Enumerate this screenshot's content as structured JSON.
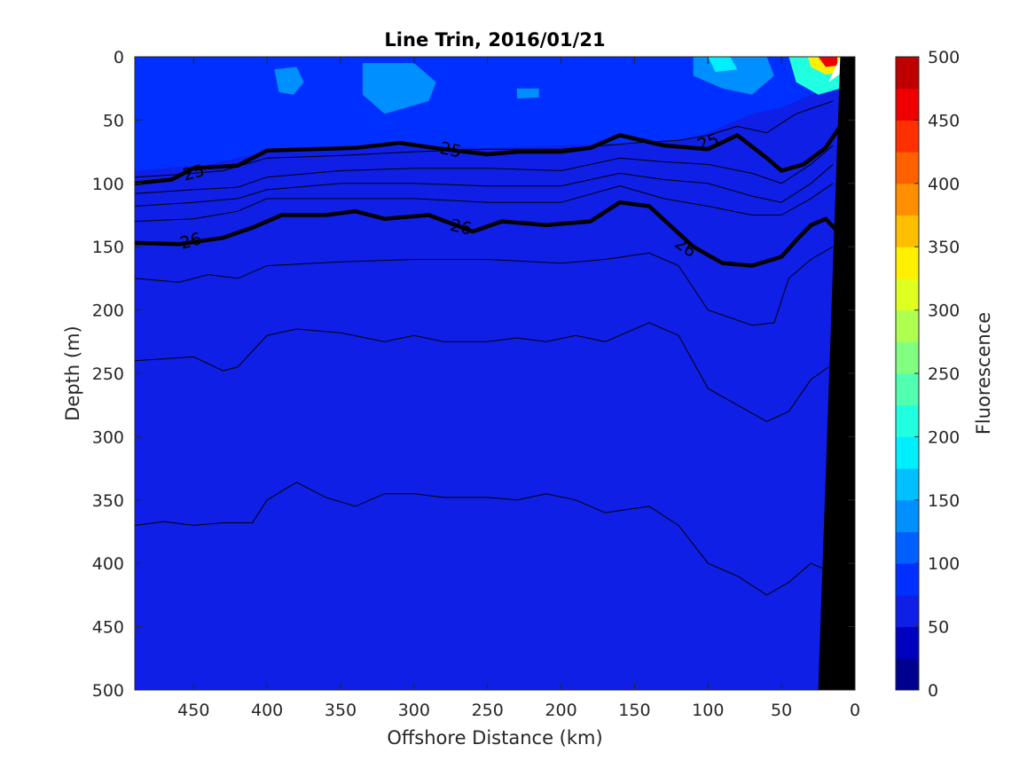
{
  "chart_data": {
    "type": "heatmap",
    "title": "Line Trin, 2016/01/21",
    "xlabel": "Offshore Distance (km)",
    "ylabel": "Depth (m)",
    "colorbar_label": "Fluorescence",
    "xlim": [
      490,
      0
    ],
    "ylim": [
      0,
      500
    ],
    "x_ticks": [
      450,
      400,
      350,
      300,
      250,
      200,
      150,
      100,
      50,
      0
    ],
    "y_ticks": [
      0,
      50,
      100,
      150,
      200,
      250,
      300,
      350,
      400,
      450,
      500
    ],
    "colorbar": {
      "range": [
        0,
        500
      ],
      "ticks": [
        0,
        50,
        100,
        150,
        200,
        250,
        300,
        350,
        400,
        450,
        500
      ],
      "levels": [
        {
          "from": 0,
          "to": 25,
          "color": "#00008f"
        },
        {
          "from": 25,
          "to": 50,
          "color": "#0000bf"
        },
        {
          "from": 50,
          "to": 75,
          "color": "#0f1fe6"
        },
        {
          "from": 75,
          "to": 100,
          "color": "#0030ff"
        },
        {
          "from": 100,
          "to": 125,
          "color": "#0060ff"
        },
        {
          "from": 125,
          "to": 150,
          "color": "#008fff"
        },
        {
          "from": 150,
          "to": 175,
          "color": "#00bfff"
        },
        {
          "from": 175,
          "to": 200,
          "color": "#00efff"
        },
        {
          "from": 200,
          "to": 225,
          "color": "#20ffdf"
        },
        {
          "from": 225,
          "to": 250,
          "color": "#50ffaf"
        },
        {
          "from": 250,
          "to": 275,
          "color": "#80ff80"
        },
        {
          "from": 275,
          "to": 300,
          "color": "#afff50"
        },
        {
          "from": 300,
          "to": 325,
          "color": "#dfff20"
        },
        {
          "from": 325,
          "to": 350,
          "color": "#ffef00"
        },
        {
          "from": 350,
          "to": 375,
          "color": "#ffbf00"
        },
        {
          "from": 375,
          "to": 400,
          "color": "#ff8f00"
        },
        {
          "from": 400,
          "to": 425,
          "color": "#ff6000"
        },
        {
          "from": 425,
          "to": 450,
          "color": "#ff3000"
        },
        {
          "from": 450,
          "to": 475,
          "color": "#ef0000"
        },
        {
          "from": 475,
          "to": 500,
          "color": "#bf0000"
        }
      ]
    },
    "background_value": 60,
    "surface_layer": {
      "value": 80,
      "boundary": [
        [
          490,
          90
        ],
        [
          440,
          85
        ],
        [
          400,
          75
        ],
        [
          350,
          72
        ],
        [
          300,
          70
        ],
        [
          250,
          72
        ],
        [
          200,
          70
        ],
        [
          150,
          68
        ],
        [
          110,
          65
        ],
        [
          90,
          55
        ],
        [
          70,
          45
        ],
        [
          50,
          40
        ],
        [
          10,
          20
        ]
      ]
    },
    "patches": [
      {
        "value": 130,
        "points": [
          [
            395,
            10
          ],
          [
            380,
            8
          ],
          [
            375,
            20
          ],
          [
            382,
            30
          ],
          [
            392,
            28
          ]
        ]
      },
      {
        "value": 130,
        "points": [
          [
            335,
            5
          ],
          [
            300,
            5
          ],
          [
            285,
            20
          ],
          [
            290,
            35
          ],
          [
            320,
            45
          ],
          [
            335,
            30
          ]
        ]
      },
      {
        "value": 130,
        "points": [
          [
            230,
            25
          ],
          [
            215,
            25
          ],
          [
            215,
            32
          ],
          [
            230,
            33
          ]
        ]
      },
      {
        "value": 140,
        "points": [
          [
            110,
            0
          ],
          [
            60,
            0
          ],
          [
            55,
            15
          ],
          [
            70,
            30
          ],
          [
            90,
            25
          ],
          [
            110,
            15
          ]
        ]
      },
      {
        "value": 180,
        "points": [
          [
            100,
            0
          ],
          [
            85,
            0
          ],
          [
            80,
            10
          ],
          [
            95,
            12
          ]
        ]
      },
      {
        "value": 200,
        "points": [
          [
            45,
            0
          ],
          [
            10,
            0
          ],
          [
            10,
            25
          ],
          [
            25,
            30
          ],
          [
            40,
            20
          ]
        ]
      },
      {
        "value": 330,
        "points": [
          [
            32,
            0
          ],
          [
            10,
            0
          ],
          [
            10,
            12
          ],
          [
            20,
            14
          ],
          [
            30,
            8
          ]
        ]
      },
      {
        "value": 470,
        "points": [
          [
            25,
            0
          ],
          [
            12,
            0
          ],
          [
            12,
            7
          ],
          [
            20,
            8
          ]
        ]
      }
    ],
    "contours_thin": [
      [
        [
          490,
          95
        ],
        [
          460,
          93
        ],
        [
          430,
          90
        ],
        [
          400,
          80
        ],
        [
          350,
          78
        ],
        [
          300,
          75
        ],
        [
          250,
          73
        ],
        [
          200,
          73
        ],
        [
          150,
          68
        ],
        [
          120,
          66
        ],
        [
          100,
          62
        ],
        [
          80,
          55
        ],
        [
          60,
          60
        ],
        [
          40,
          45
        ],
        [
          15,
          35
        ]
      ],
      [
        [
          490,
          108
        ],
        [
          450,
          105
        ],
        [
          420,
          103
        ],
        [
          400,
          95
        ],
        [
          350,
          90
        ],
        [
          300,
          88
        ],
        [
          250,
          88
        ],
        [
          200,
          90
        ],
        [
          160,
          80
        ],
        [
          130,
          83
        ],
        [
          100,
          85
        ],
        [
          70,
          92
        ],
        [
          50,
          100
        ],
        [
          30,
          85
        ],
        [
          15,
          70
        ]
      ],
      [
        [
          490,
          118
        ],
        [
          450,
          115
        ],
        [
          420,
          112
        ],
        [
          400,
          105
        ],
        [
          350,
          100
        ],
        [
          300,
          100
        ],
        [
          250,
          102
        ],
        [
          200,
          102
        ],
        [
          160,
          92
        ],
        [
          130,
          97
        ],
        [
          100,
          100
        ],
        [
          70,
          110
        ],
        [
          50,
          115
        ],
        [
          30,
          100
        ],
        [
          15,
          85
        ]
      ],
      [
        [
          490,
          130
        ],
        [
          450,
          128
        ],
        [
          420,
          122
        ],
        [
          400,
          112
        ],
        [
          350,
          112
        ],
        [
          300,
          112
        ],
        [
          250,
          115
        ],
        [
          200,
          115
        ],
        [
          160,
          102
        ],
        [
          130,
          112
        ],
        [
          100,
          118
        ],
        [
          70,
          125
        ],
        [
          50,
          125
        ],
        [
          30,
          112
        ],
        [
          15,
          100
        ]
      ],
      [
        [
          490,
          175
        ],
        [
          460,
          178
        ],
        [
          440,
          172
        ],
        [
          420,
          175
        ],
        [
          400,
          165
        ],
        [
          350,
          162
        ],
        [
          300,
          160
        ],
        [
          250,
          160
        ],
        [
          200,
          163
        ],
        [
          170,
          160
        ],
        [
          140,
          155
        ],
        [
          120,
          165
        ],
        [
          100,
          200
        ],
        [
          70,
          212
        ],
        [
          55,
          210
        ],
        [
          45,
          175
        ],
        [
          30,
          160
        ],
        [
          15,
          150
        ]
      ],
      [
        [
          490,
          240
        ],
        [
          450,
          237
        ],
        [
          430,
          248
        ],
        [
          420,
          245
        ],
        [
          400,
          220
        ],
        [
          380,
          215
        ],
        [
          350,
          218
        ],
        [
          320,
          225
        ],
        [
          300,
          220
        ],
        [
          280,
          225
        ],
        [
          250,
          225
        ],
        [
          230,
          222
        ],
        [
          210,
          225
        ],
        [
          190,
          220
        ],
        [
          170,
          225
        ],
        [
          140,
          210
        ],
        [
          120,
          220
        ],
        [
          100,
          262
        ],
        [
          80,
          275
        ],
        [
          60,
          288
        ],
        [
          45,
          280
        ],
        [
          30,
          255
        ],
        [
          18,
          245
        ]
      ],
      [
        [
          490,
          370
        ],
        [
          470,
          367
        ],
        [
          450,
          370
        ],
        [
          430,
          368
        ],
        [
          410,
          368
        ],
        [
          400,
          350
        ],
        [
          380,
          336
        ],
        [
          360,
          348
        ],
        [
          340,
          355
        ],
        [
          320,
          345
        ],
        [
          300,
          345
        ],
        [
          280,
          348
        ],
        [
          250,
          348
        ],
        [
          230,
          350
        ],
        [
          210,
          345
        ],
        [
          190,
          350
        ],
        [
          170,
          360
        ],
        [
          140,
          355
        ],
        [
          120,
          370
        ],
        [
          100,
          400
        ],
        [
          80,
          410
        ],
        [
          60,
          425
        ],
        [
          45,
          415
        ],
        [
          30,
          400
        ],
        [
          20,
          405
        ]
      ]
    ],
    "contours_bold": [
      {
        "label": "25",
        "points": [
          [
            490,
            100
          ],
          [
            465,
            97
          ],
          [
            450,
            88
          ],
          [
            420,
            86
          ],
          [
            400,
            74
          ],
          [
            370,
            73
          ],
          [
            340,
            72
          ],
          [
            310,
            68
          ],
          [
            280,
            73
          ],
          [
            250,
            77
          ],
          [
            230,
            75
          ],
          [
            200,
            75
          ],
          [
            180,
            72
          ],
          [
            160,
            62
          ],
          [
            130,
            70
          ],
          [
            100,
            73
          ],
          [
            80,
            62
          ],
          [
            60,
            80
          ],
          [
            50,
            90
          ],
          [
            35,
            85
          ],
          [
            20,
            72
          ],
          [
            10,
            55
          ]
        ],
        "label_at": [
          [
            445,
            91
          ],
          [
            270,
            74
          ],
          [
            102,
            68
          ]
        ]
      },
      {
        "label": "26",
        "points": [
          [
            490,
            147
          ],
          [
            460,
            148
          ],
          [
            430,
            143
          ],
          [
            410,
            135
          ],
          [
            390,
            125
          ],
          [
            360,
            125
          ],
          [
            340,
            122
          ],
          [
            320,
            128
          ],
          [
            290,
            125
          ],
          [
            260,
            138
          ],
          [
            240,
            130
          ],
          [
            210,
            133
          ],
          [
            180,
            130
          ],
          [
            160,
            115
          ],
          [
            140,
            118
          ],
          [
            110,
            150
          ],
          [
            90,
            163
          ],
          [
            70,
            165
          ],
          [
            50,
            158
          ],
          [
            40,
            145
          ],
          [
            30,
            133
          ],
          [
            20,
            128
          ],
          [
            10,
            140
          ]
        ],
        "label_at": [
          [
            450,
            145
          ],
          [
            265,
            134
          ],
          [
            118,
            150
          ]
        ]
      }
    ],
    "contour_labels": [
      {
        "text": "25",
        "x": 450,
        "y": 91,
        "angle": -15
      },
      {
        "text": "25",
        "x": 275,
        "y": 73,
        "angle": 12
      },
      {
        "text": "25",
        "x": 100,
        "y": 67,
        "angle": -20
      },
      {
        "text": "26",
        "x": 452,
        "y": 145,
        "angle": -15
      },
      {
        "text": "26",
        "x": 268,
        "y": 134,
        "angle": 12
      },
      {
        "text": "26",
        "x": 115,
        "y": 150,
        "angle": 35
      }
    ],
    "bathymetry": {
      "color": "#000000",
      "points": [
        [
          10,
          0
        ],
        [
          25,
          500
        ],
        [
          0,
          500
        ],
        [
          0,
          0
        ]
      ]
    },
    "white_wedge": {
      "points": [
        [
          10,
          0
        ],
        [
          0,
          0
        ],
        [
          0,
          5
        ],
        [
          18,
          20
        ]
      ]
    }
  }
}
